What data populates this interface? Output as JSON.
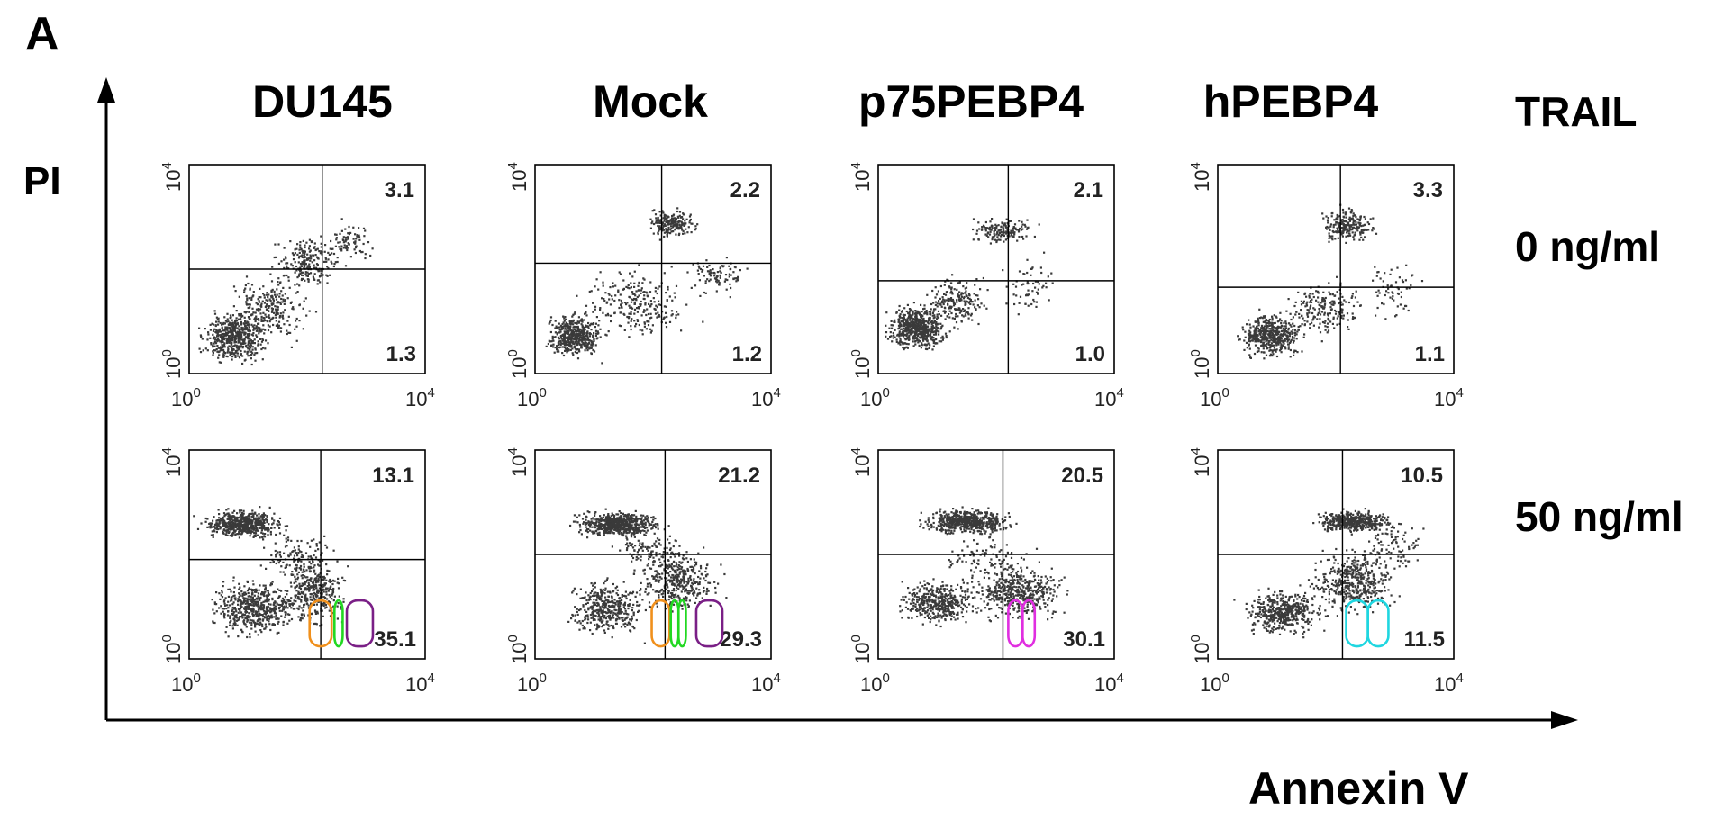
{
  "panel_label": "A",
  "chart_data": {
    "type": "scatter",
    "xlabel": "Annexin V",
    "ylabel": "PI",
    "x_scale": "log",
    "y_scale": "log",
    "xlim": [
      1,
      10000
    ],
    "ylim": [
      1,
      10000
    ],
    "tick_labels": {
      "x_min": {
        "base": "10",
        "exp": "0"
      },
      "x_max": {
        "base": "10",
        "exp": "4"
      },
      "y_min": {
        "base": "10",
        "exp": "0"
      },
      "y_max": {
        "base": "10",
        "exp": "4"
      }
    },
    "condition_header": "TRAIL",
    "columns": [
      "DU145",
      "Mock",
      "p75PEBP4",
      "hPEBP4"
    ],
    "rows": [
      "0 ng/ml",
      "50 ng/ml"
    ],
    "gate_colors": {
      "orange": "#f0901c",
      "green": "#22d822",
      "purple": "#7a1f86",
      "magenta": "#e02ee0",
      "cyan": "#1fd6e0"
    },
    "point_color": "#3a3a3a",
    "panels": [
      {
        "row": 0,
        "col": 0,
        "upper_right": "3.1",
        "lower_right": "1.3",
        "gate_x": 180,
        "gate_y": 100,
        "gates": []
      },
      {
        "row": 0,
        "col": 1,
        "upper_right": "2.2",
        "lower_right": "1.2",
        "gate_x": 140,
        "gate_y": 130,
        "gates": []
      },
      {
        "row": 0,
        "col": 2,
        "upper_right": "2.1",
        "lower_right": "1.0",
        "gate_x": 160,
        "gate_y": 60,
        "gates": []
      },
      {
        "row": 0,
        "col": 3,
        "upper_right": "3.3",
        "lower_right": "1.1",
        "gate_x": 120,
        "gate_y": 45,
        "gates": []
      },
      {
        "row": 1,
        "col": 0,
        "upper_right": "13.1",
        "lower_right": "35.1",
        "gate_x": 170,
        "gate_y": 80,
        "gates": [
          {
            "color": "orange",
            "x0": 110,
            "x1": 260
          },
          {
            "color": "green",
            "x0": 290,
            "x1": 400
          },
          {
            "color": "purple",
            "x0": 470,
            "x1": 1300
          }
        ]
      },
      {
        "row": 1,
        "col": 1,
        "upper_right": "21.2",
        "lower_right": "29.3",
        "gate_x": 160,
        "gate_y": 100,
        "gates": [
          {
            "color": "orange",
            "x0": 95,
            "x1": 190
          },
          {
            "color": "green",
            "x0": 200,
            "x1": 270
          },
          {
            "color": "green",
            "x0": 270,
            "x1": 360
          },
          {
            "color": "purple",
            "x0": 540,
            "x1": 1500
          }
        ]
      },
      {
        "row": 1,
        "col": 2,
        "upper_right": "20.5",
        "lower_right": "30.1",
        "gate_x": 130,
        "gate_y": 100,
        "gates": [
          {
            "color": "magenta",
            "x0": 160,
            "x1": 280
          },
          {
            "color": "magenta",
            "x0": 280,
            "x1": 450
          }
        ]
      },
      {
        "row": 1,
        "col": 3,
        "upper_right": "10.5",
        "lower_right": "11.5",
        "gate_x": 130,
        "gate_y": 100,
        "gates": [
          {
            "color": "cyan",
            "x0": 150,
            "x1": 350
          },
          {
            "color": "cyan",
            "x0": 350,
            "x1": 780
          }
        ]
      }
    ]
  }
}
